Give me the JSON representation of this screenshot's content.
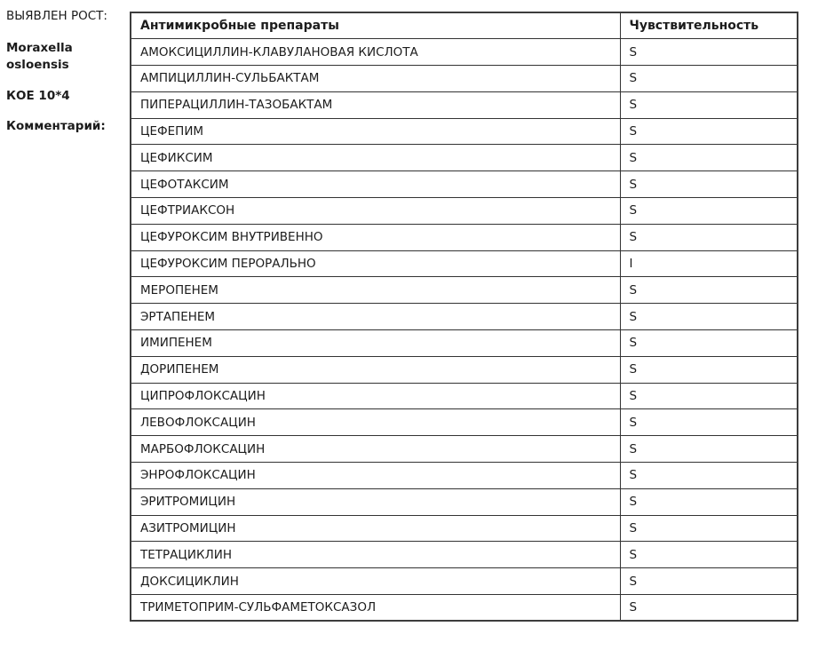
{
  "page": {
    "background": "#ffffff",
    "text_color": "#1c1c1c",
    "border_color": "#3d3d3d"
  },
  "side_panel": {
    "growth_label": "ВЫЯВЛЕН РОСТ:",
    "organism": "Moraxella osloensis",
    "cfu": "КОЕ 10*4",
    "comment_label": "Комментарий:"
  },
  "table": {
    "headers": {
      "drug": "Антимикробные препараты",
      "sensitivity": "Чувствительность"
    },
    "rows": [
      {
        "drug": "АМОКСИЦИЛЛИН-КЛАВУЛАНОВАЯ КИСЛОТА",
        "sensitivity": "S"
      },
      {
        "drug": "АМПИЦИЛЛИН-СУЛЬБАКТАМ",
        "sensitivity": "S"
      },
      {
        "drug": "ПИПЕРАЦИЛЛИН-ТАЗОБАКТАМ",
        "sensitivity": "S"
      },
      {
        "drug": "ЦЕФЕПИМ",
        "sensitivity": "S"
      },
      {
        "drug": "ЦЕФИКСИМ",
        "sensitivity": "S"
      },
      {
        "drug": "ЦЕФОТАКСИМ",
        "sensitivity": "S"
      },
      {
        "drug": "ЦЕФТРИАКСОН",
        "sensitivity": "S"
      },
      {
        "drug": "ЦЕФУРОКСИМ ВНУТРИВЕННО",
        "sensitivity": "S"
      },
      {
        "drug": "ЦЕФУРОКСИМ ПЕРОРАЛЬНО",
        "sensitivity": "I"
      },
      {
        "drug": "МЕРОПЕНЕМ",
        "sensitivity": "S"
      },
      {
        "drug": "ЭРТАПЕНЕМ",
        "sensitivity": "S"
      },
      {
        "drug": "ИМИПЕНЕМ",
        "sensitivity": "S"
      },
      {
        "drug": "ДОРИПЕНЕМ",
        "sensitivity": "S"
      },
      {
        "drug": "ЦИПРОФЛОКСАЦИН",
        "sensitivity": "S"
      },
      {
        "drug": "ЛЕВОФЛОКСАЦИН",
        "sensitivity": "S"
      },
      {
        "drug": "МАРБОФЛОКСАЦИН",
        "sensitivity": "S"
      },
      {
        "drug": "ЭНРОФЛОКСАЦИН",
        "sensitivity": "S"
      },
      {
        "drug": "ЭРИТРОМИЦИН",
        "sensitivity": "S"
      },
      {
        "drug": "АЗИТРОМИЦИН",
        "sensitivity": "S"
      },
      {
        "drug": "ТЕТРАЦИКЛИН",
        "sensitivity": "S"
      },
      {
        "drug": "ДОКСИЦИКЛИН",
        "sensitivity": "S"
      },
      {
        "drug": "ТРИМЕТОПРИМ-СУЛЬФАМЕТОКСАЗОЛ",
        "sensitivity": "S"
      }
    ]
  }
}
